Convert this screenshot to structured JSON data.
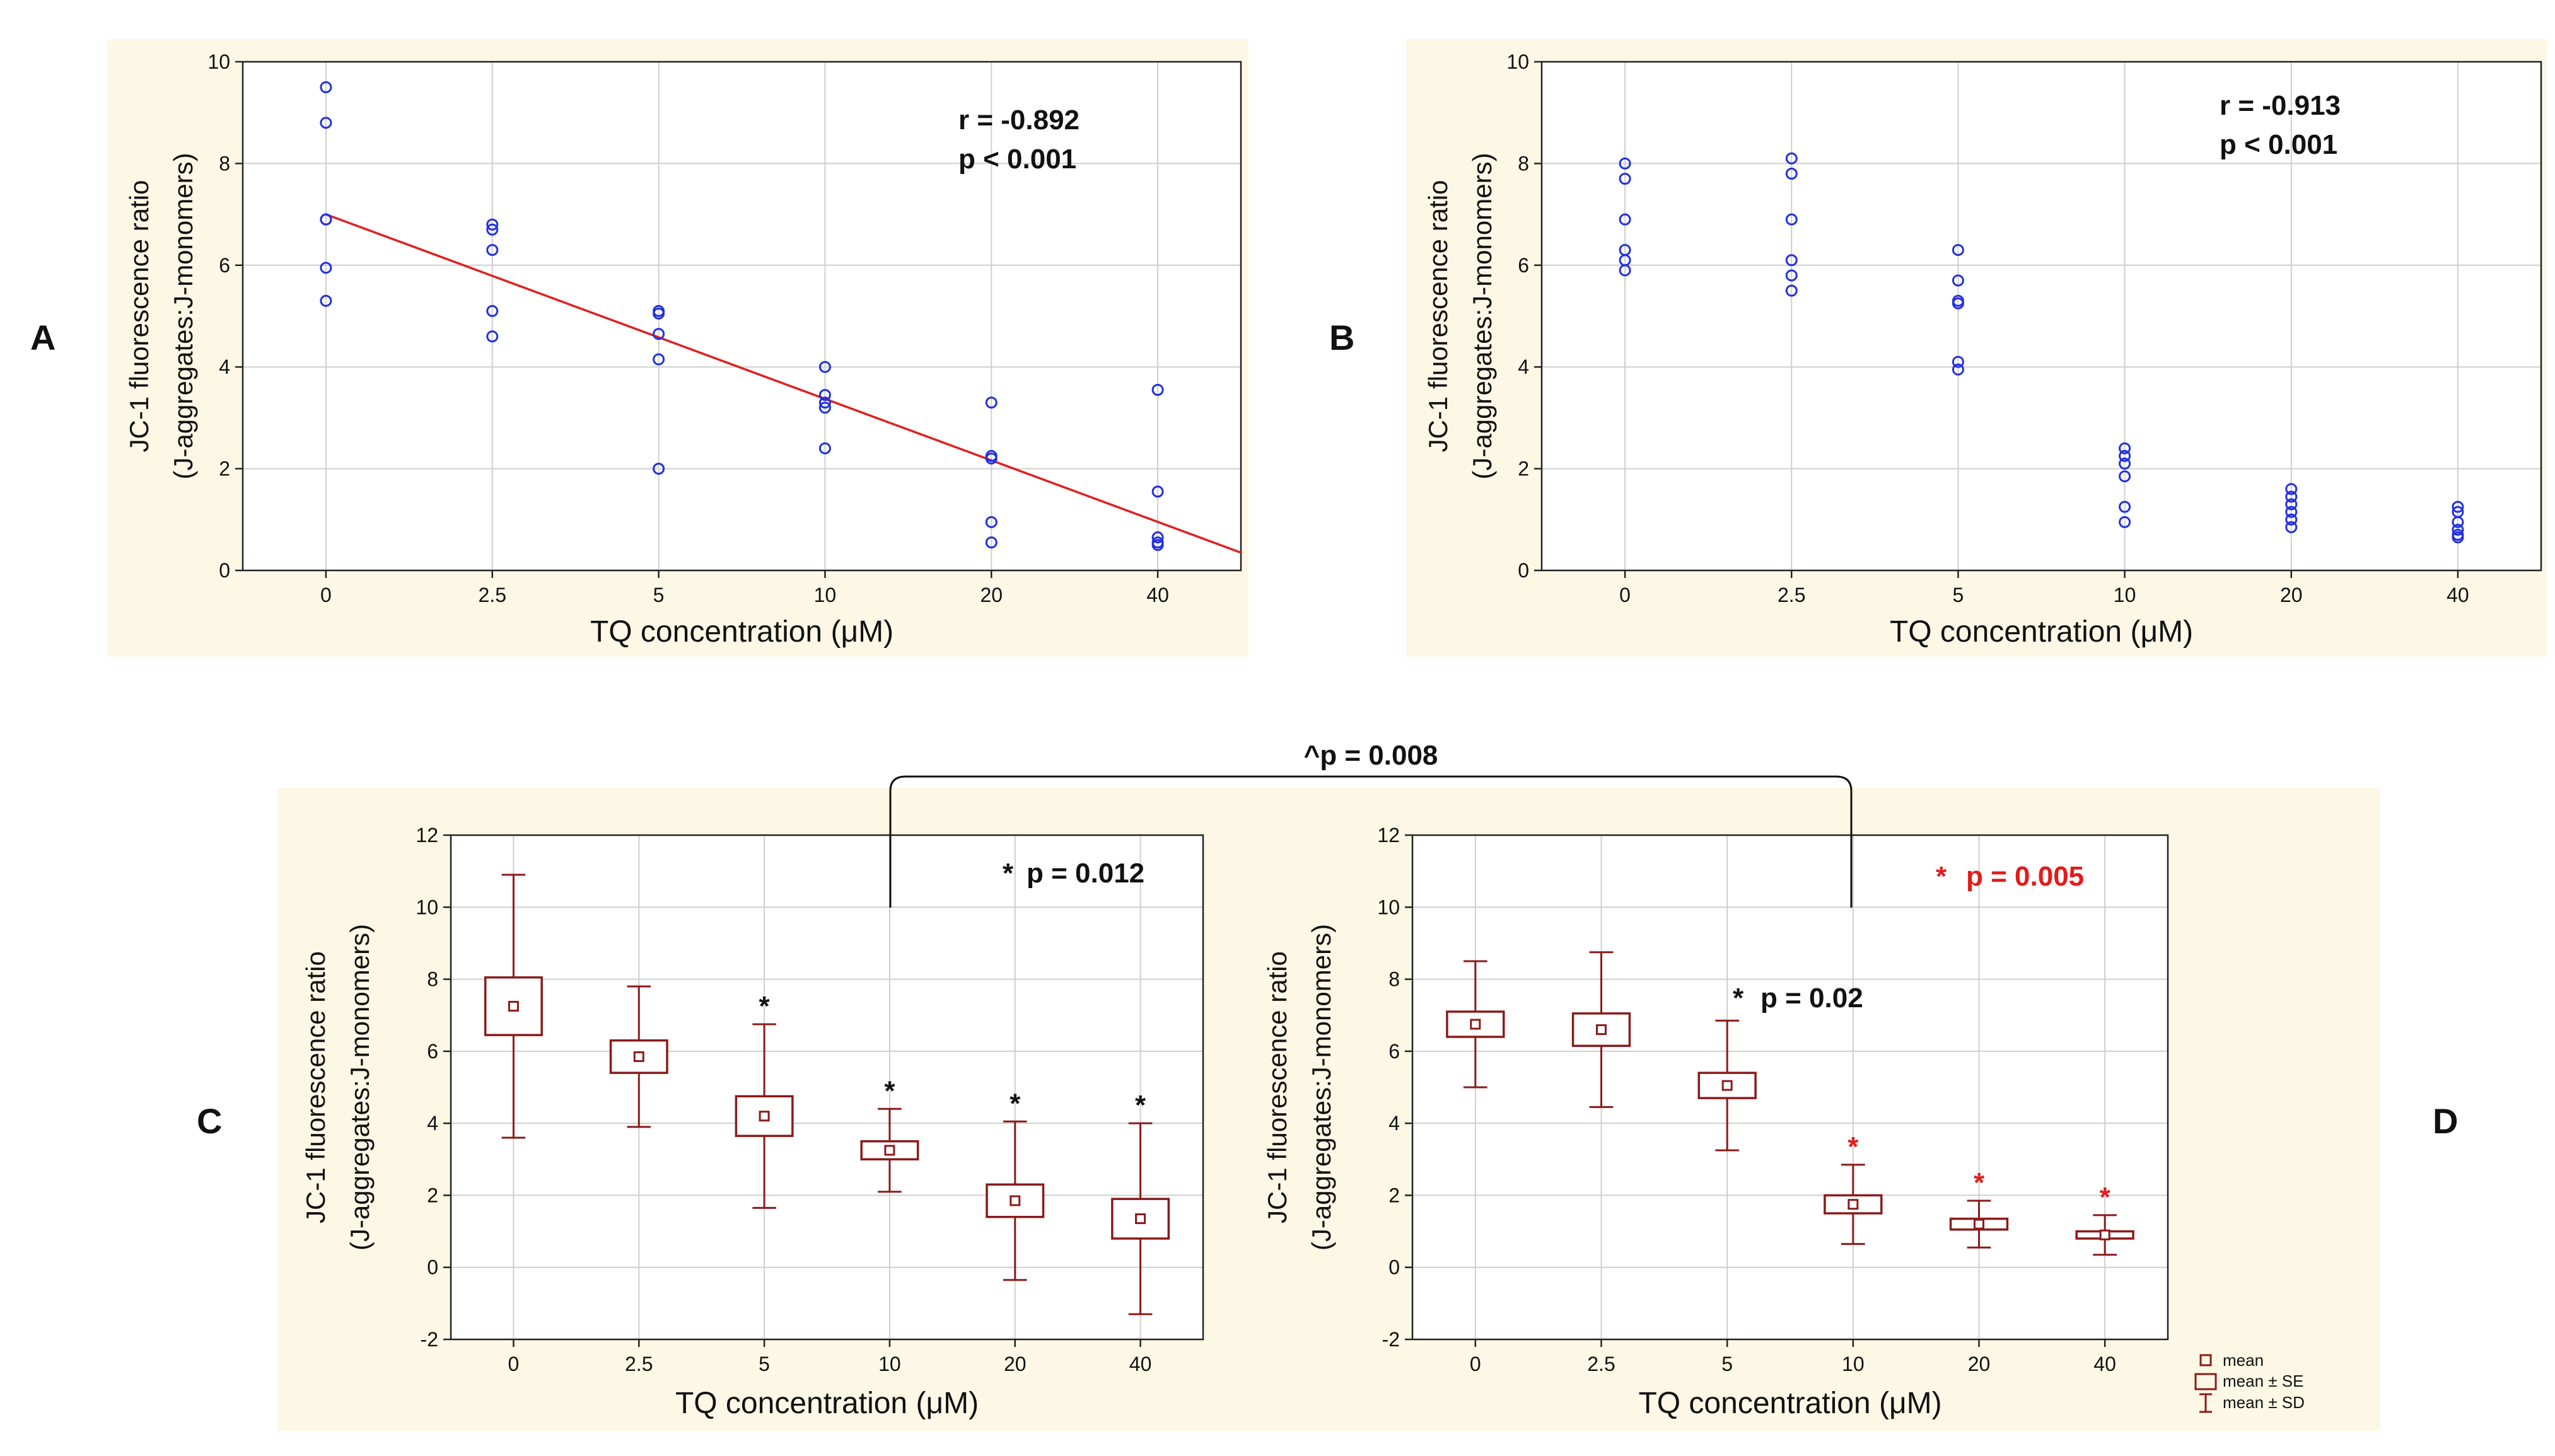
{
  "colors": {
    "panel_bg": "#fdf8e6",
    "scatter": "#2230e0",
    "regression": "#e02020",
    "box": "#8b1a1a",
    "star_black": "#111111",
    "star_red": "#e31b1b",
    "grid": "#cfcfcf"
  },
  "comparison": {
    "label": "^p = 0.008"
  },
  "legend": {
    "mean": "mean",
    "mean_se": "mean ± SE",
    "mean_sd": "mean ± SD"
  },
  "chart_data": [
    {
      "id": "A",
      "type": "scatter",
      "panel_label": "A",
      "ylabel_line1": "JC-1 fluorescence ratio",
      "ylabel_line2": "(J-aggregates:J-monomers)",
      "xlabel": "TQ concentration (μM)",
      "categories": [
        "0",
        "2.5",
        "5",
        "10",
        "20",
        "40"
      ],
      "ylim": [
        0,
        10
      ],
      "yticks": [
        0,
        2,
        4,
        6,
        8,
        10
      ],
      "xlim": [
        -0.5,
        5.5
      ],
      "points": [
        [
          0,
          9.5
        ],
        [
          0,
          8.8
        ],
        [
          0,
          6.9
        ],
        [
          0,
          6.9
        ],
        [
          0,
          5.95
        ],
        [
          0,
          5.3
        ],
        [
          1,
          6.8
        ],
        [
          1,
          6.7
        ],
        [
          1,
          6.3
        ],
        [
          1,
          5.1
        ],
        [
          1,
          4.6
        ],
        [
          2,
          5.1
        ],
        [
          2,
          5.05
        ],
        [
          2,
          4.65
        ],
        [
          2,
          4.15
        ],
        [
          2,
          2.0
        ],
        [
          3,
          4.0
        ],
        [
          3,
          3.45
        ],
        [
          3,
          3.3
        ],
        [
          3,
          3.2
        ],
        [
          3,
          2.4
        ],
        [
          4,
          3.3
        ],
        [
          4,
          2.25
        ],
        [
          4,
          2.2
        ],
        [
          4,
          0.95
        ],
        [
          4,
          0.55
        ],
        [
          5,
          3.55
        ],
        [
          5,
          1.55
        ],
        [
          5,
          0.65
        ],
        [
          5,
          0.55
        ],
        [
          5,
          0.5
        ]
      ],
      "regression": {
        "x0": 0,
        "y0": 7.0,
        "x1": 5.5,
        "y1": 0.35
      },
      "annotation": {
        "line1": "r = -0.892",
        "line2": "p < 0.001"
      }
    },
    {
      "id": "B",
      "type": "scatter",
      "panel_label": "B",
      "ylabel_line1": "JC-1 fluorescence ratio",
      "ylabel_line2": "(J-aggregates:J-monomers)",
      "xlabel": "TQ concentration (μM)",
      "categories": [
        "0",
        "2.5",
        "5",
        "10",
        "20",
        "40"
      ],
      "ylim": [
        0,
        10
      ],
      "yticks": [
        0,
        2,
        4,
        6,
        8,
        10
      ],
      "xlim": [
        -0.5,
        5.5
      ],
      "points": [
        [
          0,
          8.0
        ],
        [
          0,
          7.7
        ],
        [
          0,
          6.9
        ],
        [
          0,
          6.3
        ],
        [
          0,
          6.1
        ],
        [
          0,
          5.9
        ],
        [
          1,
          8.1
        ],
        [
          1,
          7.8
        ],
        [
          1,
          6.9
        ],
        [
          1,
          6.1
        ],
        [
          1,
          5.8
        ],
        [
          1,
          5.5
        ],
        [
          2,
          6.3
        ],
        [
          2,
          5.7
        ],
        [
          2,
          5.3
        ],
        [
          2,
          5.25
        ],
        [
          2,
          4.1
        ],
        [
          2,
          3.95
        ],
        [
          3,
          2.4
        ],
        [
          3,
          2.25
        ],
        [
          3,
          2.1
        ],
        [
          3,
          1.85
        ],
        [
          3,
          1.25
        ],
        [
          3,
          0.95
        ],
        [
          4,
          1.6
        ],
        [
          4,
          1.45
        ],
        [
          4,
          1.3
        ],
        [
          4,
          1.15
        ],
        [
          4,
          1.0
        ],
        [
          4,
          0.85
        ],
        [
          5,
          1.25
        ],
        [
          5,
          1.15
        ],
        [
          5,
          0.95
        ],
        [
          5,
          0.8
        ],
        [
          5,
          0.7
        ],
        [
          5,
          0.65
        ]
      ],
      "annotation": {
        "line1": "r = -0.913",
        "line2": "p < 0.001"
      }
    },
    {
      "id": "C",
      "type": "box",
      "panel_label": "C",
      "ylabel_line1": "JC-1 fluorescence ratio",
      "ylabel_line2": "(J-aggregates:J-monomers)",
      "xlabel": "TQ concentration (μM)",
      "categories": [
        "0",
        "2.5",
        "5",
        "10",
        "20",
        "40"
      ],
      "ylim": [
        -2,
        12
      ],
      "yticks": [
        -2,
        0,
        2,
        4,
        6,
        8,
        10,
        12
      ],
      "xlim": [
        -0.5,
        5.5
      ],
      "mean": [
        7.25,
        5.85,
        4.2,
        3.25,
        1.85,
        1.35
      ],
      "se": [
        0.8,
        0.45,
        0.55,
        0.25,
        0.45,
        0.55
      ],
      "sd": [
        3.65,
        1.95,
        2.55,
        1.15,
        2.2,
        2.65
      ],
      "stars": [
        false,
        false,
        true,
        true,
        true,
        true
      ],
      "star_color": "black",
      "stat": {
        "star": "*",
        "text": "p = 0.012",
        "color": "black"
      }
    },
    {
      "id": "D",
      "type": "box",
      "panel_label": "D",
      "ylabel_line1": "JC-1 fluorescence ratio",
      "ylabel_line2": "(J-aggregates:J-monomers)",
      "xlabel": "TQ concentration (μM)",
      "categories": [
        "0",
        "2.5",
        "5",
        "10",
        "20",
        "40"
      ],
      "ylim": [
        -2,
        12
      ],
      "yticks": [
        -2,
        0,
        2,
        4,
        6,
        8,
        10,
        12
      ],
      "xlim": [
        -0.5,
        5.5
      ],
      "mean": [
        6.75,
        6.6,
        5.05,
        1.75,
        1.2,
        0.9
      ],
      "se": [
        0.35,
        0.45,
        0.35,
        0.25,
        0.15,
        0.1
      ],
      "sd": [
        1.75,
        2.15,
        1.8,
        1.1,
        0.65,
        0.55
      ],
      "stars": [
        false,
        false,
        false,
        true,
        true,
        true
      ],
      "star_color": "red",
      "stat": {
        "star": "*",
        "text": "p = 0.005",
        "color": "red"
      },
      "stat2": {
        "star": "*",
        "text": "p = 0.02",
        "color": "black"
      }
    }
  ]
}
